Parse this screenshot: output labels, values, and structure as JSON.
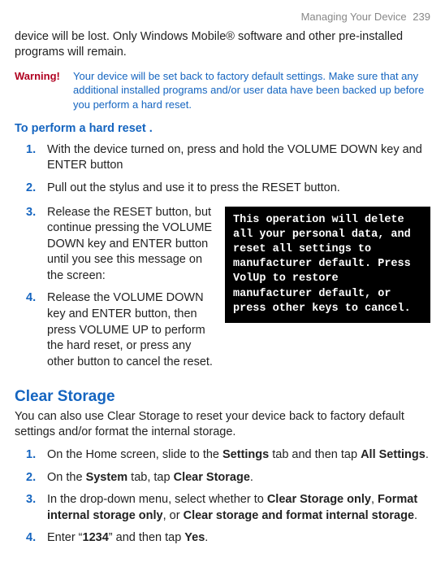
{
  "header": {
    "section": "Managing Your Device",
    "page": "239"
  },
  "intro": "device will be lost. Only Windows Mobile® software and other pre-installed programs will remain.",
  "warning": {
    "label": "Warning!",
    "text": "Your device will be set back to factory default settings. Make sure that any additional installed programs and/or user data have been backed up before you perform a hard reset."
  },
  "hardreset": {
    "heading": "To perform a hard reset",
    "steps12": [
      "With the device turned on, press and hold the VOLUME DOWN key and ENTER button",
      "Pull out the stylus and use it to press the RESET button."
    ],
    "steps34": [
      "Release the RESET button, but continue pressing the VOLUME DOWN key and ENTER button until you see this message on the screen:",
      "Release the VOLUME DOWN key and ENTER button, then press VOLUME UP to perform the hard reset, or press any other button to cancel the reset."
    ],
    "screen": "This operation will delete all your personal data, and reset all settings to manufacturer default. Press VolUp to restore manufacturer default, or press other keys to cancel."
  },
  "clearstorage": {
    "title": "Clear Storage",
    "intro": "You can also use Clear Storage to reset your device back to factory default settings and/or format the internal storage.",
    "s1a": "On the Home screen, slide to the ",
    "s1b": "Settings",
    "s1c": " tab and then tap ",
    "s1d": "All Settings",
    "s1e": ".",
    "s2a": "On the ",
    "s2b": "System",
    "s2c": " tab, tap ",
    "s2d": "Clear Storage",
    "s2e": ".",
    "s3a": "In the drop-down menu, select whether to ",
    "s3b": "Clear Storage only",
    "s3c": ", ",
    "s3d": "Format internal storage only",
    "s3e": ", or ",
    "s3f": "Clear storage and format internal storage",
    "s3g": ".",
    "s4a": "Enter “",
    "s4b": "1234",
    "s4c": "” and then tap ",
    "s4d": "Yes",
    "s4e": "."
  },
  "nums": {
    "n1": "1.",
    "n2": "2.",
    "n3": "3.",
    "n4": "4."
  },
  "dot": " ."
}
